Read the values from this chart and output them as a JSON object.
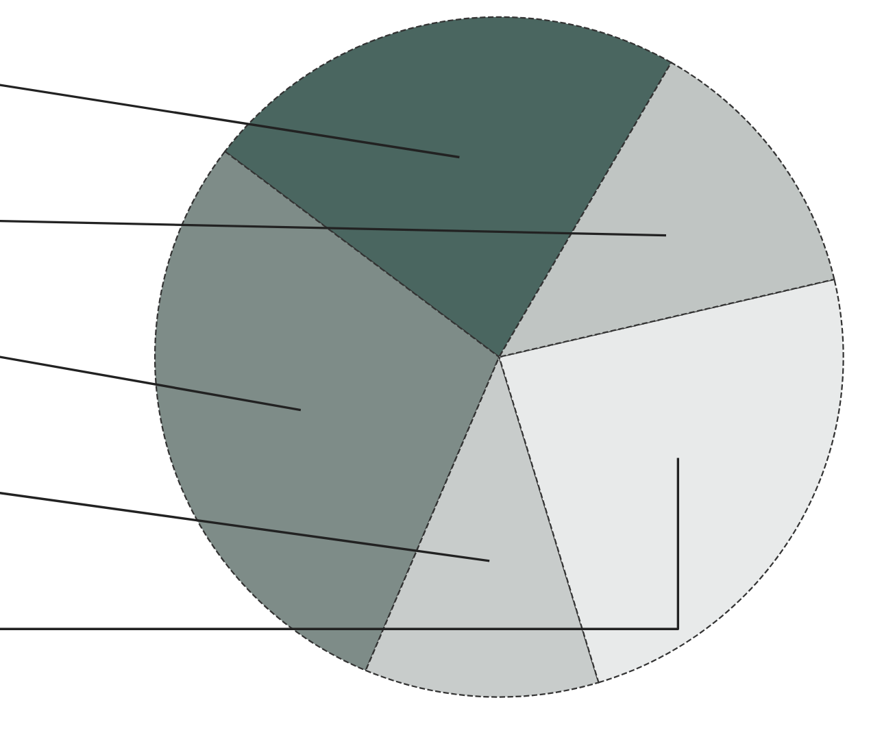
{
  "chart_data": {
    "type": "pie",
    "categories": [
      null,
      null,
      null,
      null,
      null
    ],
    "values": [
      23,
      29,
      11,
      24,
      13
    ],
    "colors": [
      "#4a6660",
      "#7e8c88",
      "#c8cccb",
      "#e8eaea",
      "#c0c5c3"
    ]
  }
}
